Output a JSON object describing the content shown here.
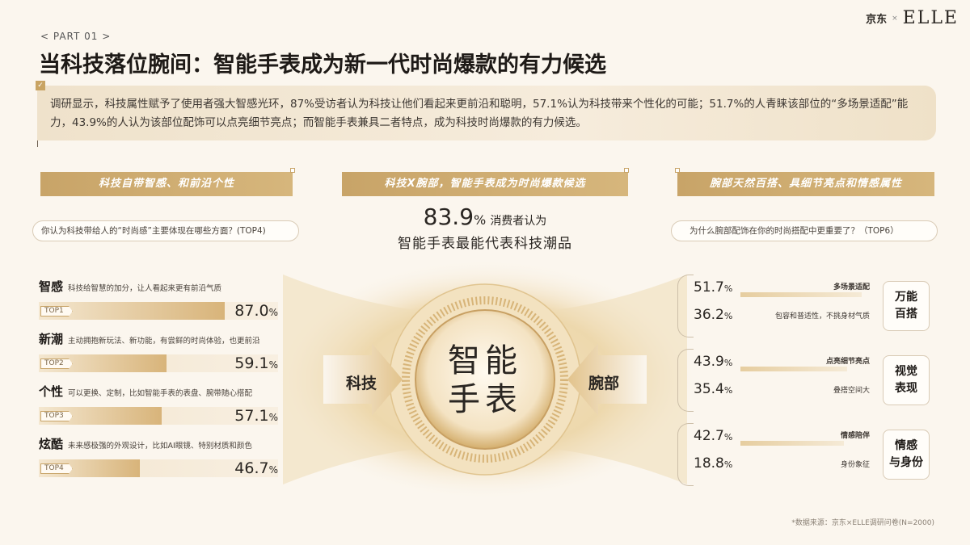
{
  "header": {
    "logo_jd": "京东",
    "logo_jd_sub": "JD",
    "logo_x": "×",
    "logo_elle": "ELLE",
    "part": "< PART 01 >",
    "title": "当科技落位腕间：智能手表成为新一代时尚爆款的有力候选"
  },
  "summary": {
    "check_icon": "✓",
    "text": "调研显示，科技属性赋予了使用者强大智感光环，87%受访者认为科技让他们看起来更前沿和聪明，57.1%认为科技带来个性化的可能；51.7%的人青睐该部位的“多场景适配”能力，43.9%的人认为该部位配饰可以点亮细节亮点；而智能手表兼具二者特点，成为科技时尚爆款的有力候选。"
  },
  "sections": {
    "left_banner": "科技自带智感、和前沿个性",
    "mid_banner": "科技X腕部，智能手表成为时尚爆款候选",
    "right_banner": "腕部天然百搭、具细节亮点和情感属性",
    "left_question": "你认为科技带给人的“时尚感”主要体现在哪些方面？(TOP4)",
    "right_question": "为什么腕部配饰在你的时尚搭配中更重要了？（TOP6）"
  },
  "center": {
    "stat_value": "83.9",
    "stat_unit": "%",
    "stat_text": "消费者认为",
    "stat_sub": "智能手表最能代表科技潮品",
    "left_keyword": "科技",
    "right_keyword": "腕部",
    "core_line1": "智能",
    "core_line2": "手表"
  },
  "left_items": [
    {
      "name": "智感",
      "desc": "科技给智慧的加分，让人看起来更有前沿气质",
      "tag": "TOP1",
      "value": 87.0,
      "value_text": "87.0",
      "unit": "%"
    },
    {
      "name": "新潮",
      "desc": "主动拥抱新玩法、新功能，有尝鲜的时尚体验，也更前沿",
      "tag": "TOP2",
      "value": 59.1,
      "value_text": "59.1",
      "unit": "%"
    },
    {
      "name": "个性",
      "desc": "可以更换、定制，比如智能手表的表盘、腕带随心搭配",
      "tag": "TOP3",
      "value": 57.1,
      "value_text": "57.1",
      "unit": "%"
    },
    {
      "name": "炫酷",
      "desc": "未来感极强的外观设计，比如AI眼镜、特别材质和颜色",
      "tag": "TOP4",
      "value": 46.7,
      "value_text": "46.7",
      "unit": "%"
    }
  ],
  "right_groups": [
    {
      "box_line1": "万能",
      "box_line2": "百搭",
      "rows": [
        {
          "value": 51.7,
          "value_text": "51.7",
          "unit": "%",
          "label": "多场景适配"
        },
        {
          "value": 36.2,
          "value_text": "36.2",
          "unit": "%",
          "label": "包容和普适性，不挑身材气质"
        }
      ]
    },
    {
      "box_line1": "视觉",
      "box_line2": "表现",
      "rows": [
        {
          "value": 43.9,
          "value_text": "43.9",
          "unit": "%",
          "label": "点亮细节亮点"
        },
        {
          "value": 35.4,
          "value_text": "35.4",
          "unit": "%",
          "label": "叠搭空间大"
        }
      ]
    },
    {
      "box_line1": "情感",
      "box_line2": "与身份",
      "rows": [
        {
          "value": 42.7,
          "value_text": "42.7",
          "unit": "%",
          "label": "情感陪伴"
        },
        {
          "value": 18.8,
          "value_text": "18.8",
          "unit": "%",
          "label": "身份象征"
        }
      ]
    }
  ],
  "footnote": "*数据来源：京东×ELLE调研问卷(N=2000)",
  "colors": {
    "gold": "#c8a468",
    "background": "#fbf6ee",
    "text": "#2a2622"
  }
}
